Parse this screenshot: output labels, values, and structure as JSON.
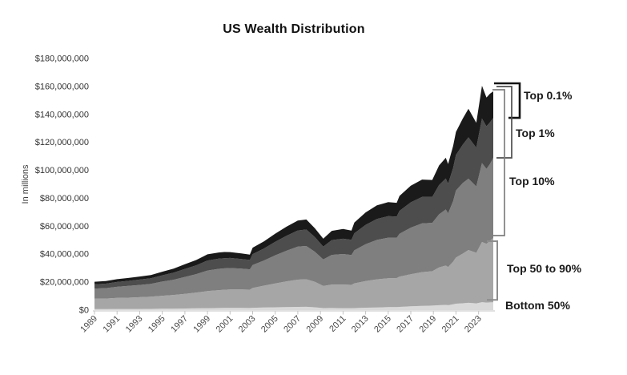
{
  "title": "US Wealth Distribution",
  "y_axis": {
    "label": "In millions",
    "ticks": [
      "$0",
      "$20,000,000",
      "$40,000,000",
      "$60,000,000",
      "$80,000,000",
      "$100,000,000",
      "$120,000,000",
      "$140,000,000",
      "$160,000,000",
      "$180,000,000"
    ],
    "tick_step": 20000000
  },
  "x_axis": {
    "tick_years": [
      1989,
      1991,
      1993,
      1995,
      1997,
      1999,
      2001,
      2003,
      2005,
      2007,
      2009,
      2011,
      2013,
      2015,
      2017,
      2019,
      2021,
      2023
    ]
  },
  "annotations": [
    {
      "label": "Top 0.1%"
    },
    {
      "label": "Top 1%"
    },
    {
      "label": "Top 10%"
    },
    {
      "label": "Top 50 to 90%"
    },
    {
      "label": "Bottom 50%"
    }
  ],
  "colors": {
    "bottom_50": "#d9d9d9",
    "top_50_to_90": "#a6a6a6",
    "top_10": "#7f7f7f",
    "top_1": "#4d4d4d",
    "top_01": "#1a1a1a",
    "axis": "#c3c3c3"
  },
  "chart_data": {
    "type": "area",
    "stacked": true,
    "title": "US Wealth Distribution",
    "ylabel": "In millions",
    "unit": "millions of US dollars",
    "ylim": [
      0,
      180000000
    ],
    "xlim": [
      1989,
      2024.3
    ],
    "grid": false,
    "legend_position": "right-brackets",
    "x": [
      1989,
      1990,
      1991,
      1992,
      1993,
      1994,
      1995,
      1996,
      1997,
      1998,
      1999,
      2000,
      2000.5,
      2001,
      2002,
      2002.75,
      2003,
      2004,
      2005,
      2006,
      2007,
      2007.75,
      2008.5,
      2009.25,
      2010,
      2011,
      2011.75,
      2012,
      2013,
      2014,
      2015,
      2015.75,
      2016,
      2017,
      2018,
      2018.9,
      2019.5,
      2020.1,
      2020.3,
      2020.75,
      2021,
      2021.6,
      2022.1,
      2022.8,
      2023.3,
      2023.7,
      2024,
      2024.3
    ],
    "series": [
      {
        "name": "Bottom 50%",
        "color": "#d9d9d9",
        "values": [
          720000,
          730000,
          800000,
          800000,
          820000,
          880000,
          980000,
          1050000,
          1150000,
          1250000,
          1400000,
          1500000,
          1550000,
          1600000,
          1550000,
          1500000,
          1650000,
          1900000,
          2000000,
          2200000,
          2300000,
          2350000,
          2000000,
          1450000,
          1500000,
          1400000,
          1350000,
          1450000,
          1700000,
          1900000,
          2100000,
          2150000,
          2300000,
          2700000,
          3000000,
          3200000,
          3500000,
          3700000,
          3500000,
          4200000,
          4600000,
          4900000,
          5200000,
          4800000,
          5700000,
          5400000,
          5500000,
          5600000
        ]
      },
      {
        "name": "Top 50 to 90%",
        "color": "#a6a6a6",
        "values": [
          7400000,
          7500000,
          7900000,
          8100000,
          8400000,
          8700000,
          9300000,
          9800000,
          10500000,
          11300000,
          12200000,
          12800000,
          13000000,
          13200000,
          13200000,
          13100000,
          14200000,
          15600000,
          17100000,
          18400000,
          19500000,
          19700000,
          18300000,
          15800000,
          16800000,
          16900000,
          16700000,
          17700000,
          19100000,
          20100000,
          20700000,
          20800000,
          21600000,
          23000000,
          24200000,
          24600000,
          27000000,
          28200000,
          27300000,
          30500000,
          33000000,
          35500000,
          37800000,
          36200000,
          43000000,
          42000000,
          44000000,
          46000000
        ]
      },
      {
        "name": "Top 10%",
        "color": "#7f7f7f",
        "values": [
          7300000,
          7500000,
          8000000,
          8400000,
          8800000,
          9200000,
          10100000,
          10900000,
          12100000,
          13200000,
          14700000,
          15200000,
          15300000,
          15300000,
          14900000,
          14600000,
          16400000,
          18000000,
          20100000,
          21900000,
          23600000,
          23800000,
          21500000,
          19000000,
          21200000,
          21800000,
          21400000,
          23600000,
          26300000,
          28200000,
          29000000,
          28800000,
          30700000,
          33300000,
          34900000,
          34600000,
          38000000,
          40100000,
          38400000,
          43300000,
          48000000,
          50500000,
          51000000,
          47500000,
          56500000,
          53600000,
          55000000,
          57300000
        ]
      },
      {
        "name": "Top 1%",
        "color": "#4d4d4d",
        "values": [
          3100000,
          3200000,
          3400000,
          3600000,
          3800000,
          4000000,
          4500000,
          5000000,
          5700000,
          6300000,
          7200000,
          7300000,
          7300000,
          7200000,
          6900000,
          6700000,
          7800000,
          8600000,
          9700000,
          10700000,
          11600000,
          11800000,
          10500000,
          9200000,
          10600000,
          11000000,
          10800000,
          12200000,
          13900000,
          15000000,
          15400000,
          15200000,
          16400000,
          18100000,
          18900000,
          18600000,
          21000000,
          22100000,
          21200000,
          23800000,
          25400000,
          27500000,
          29600000,
          27700000,
          31800000,
          30500000,
          29800000,
          28600000
        ]
      },
      {
        "name": "Top 0.1%",
        "color": "#1a1a1a",
        "values": [
          1800000,
          1900000,
          2000000,
          2100000,
          2200000,
          2300000,
          2600000,
          2900000,
          3400000,
          3800000,
          4400000,
          4400000,
          4400000,
          4200000,
          4000000,
          3800000,
          4600000,
          5100000,
          5800000,
          6500000,
          7100000,
          7200000,
          6300000,
          5600000,
          6600000,
          6900000,
          6700000,
          7700000,
          8900000,
          9700000,
          10000000,
          9800000,
          10700000,
          11900000,
          12400000,
          12100000,
          14000000,
          14900000,
          14100000,
          15700000,
          16500000,
          18600000,
          20400000,
          17800000,
          23500000,
          20500000,
          20500000,
          19000000
        ]
      }
    ]
  }
}
